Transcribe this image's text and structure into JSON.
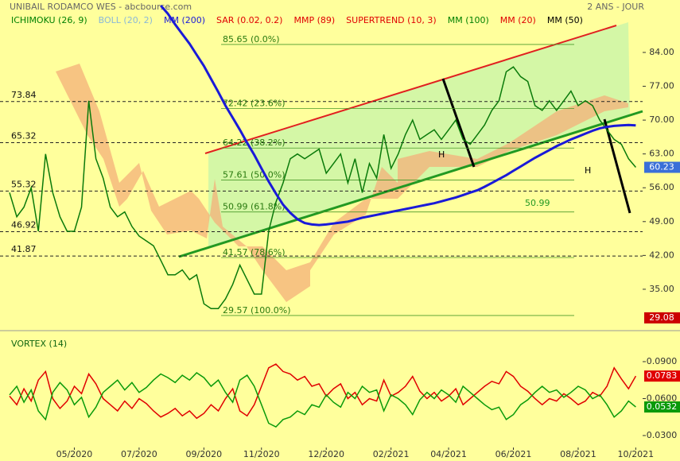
{
  "chart_data": [
    {
      "type": "line",
      "title": "UNIBAIL RODAMCO WES - abcbourse.com",
      "period": "2 ANS - JOUR",
      "indicators": [
        {
          "name": "ICHIMOKU (26, 9)",
          "color": "#008000"
        },
        {
          "name": "BOLL (20, 2)",
          "color": "#8ab8d8"
        },
        {
          "name": "MM (200)",
          "color": "#1a1ad8"
        },
        {
          "name": "SAR (0.02, 0.2)",
          "color": "#e00000"
        },
        {
          "name": "MMP (89)",
          "color": "#e00000"
        },
        {
          "name": "SUPERTREND (10, 3)",
          "color": "#e00000"
        },
        {
          "name": "MM (100)",
          "color": "#008000"
        },
        {
          "name": "MM (20)",
          "color": "#e00000"
        },
        {
          "name": "MM (50)",
          "color": "#000000"
        }
      ],
      "categories": [
        null,
        null,
        null,
        null,
        null,
        null,
        null,
        null,
        null,
        "05/2020",
        null,
        null,
        null,
        null,
        null,
        null,
        null,
        null,
        "07/2020",
        null,
        null,
        null,
        null,
        null,
        null,
        null,
        null,
        "09/2020",
        null,
        null,
        null,
        null,
        null,
        null,
        null,
        "11/2020",
        null,
        null,
        null,
        null,
        null,
        null,
        null,
        null,
        "12/2020",
        null,
        null,
        null,
        null,
        null,
        null,
        null,
        null,
        "02/2021",
        null,
        null,
        null,
        null,
        null,
        null,
        null,
        "04/2021",
        null,
        null,
        null,
        null,
        null,
        null,
        null,
        null,
        "06/2021",
        null,
        null,
        null,
        null,
        null,
        null,
        null,
        null,
        "08/2021",
        null,
        null,
        null,
        null,
        null,
        null,
        null,
        "10/2021"
      ],
      "close": {
        "color": "#0a7a0a",
        "values": [
          55,
          50,
          52,
          56,
          47,
          63,
          55,
          50,
          47,
          47,
          52,
          74,
          62,
          58,
          52,
          50,
          51,
          48,
          46,
          45,
          44,
          41,
          38,
          38,
          39,
          37,
          38,
          32,
          31,
          31,
          33,
          36,
          40,
          37,
          34,
          34,
          47,
          53,
          57,
          62,
          63,
          62,
          63,
          64,
          59,
          61,
          63,
          57,
          62,
          55,
          61,
          58,
          67,
          60,
          63,
          67,
          70,
          66,
          67,
          68,
          66,
          68,
          70,
          66,
          65,
          67,
          69,
          72,
          74,
          80,
          81,
          79,
          78,
          73,
          72,
          74,
          72,
          74,
          76,
          73,
          74,
          73,
          70,
          68,
          66,
          65,
          62,
          60.23
        ]
      },
      "ma200": {
        "color": "#1a1ad8",
        "values": [
          null,
          null,
          null,
          null,
          null,
          null,
          null,
          null,
          null,
          null,
          null,
          null,
          null,
          null,
          null,
          null,
          null,
          null,
          null,
          null,
          null,
          93.7,
          92,
          89.8,
          87.8,
          85.8,
          83.5,
          81.2,
          78.5,
          75.8,
          73,
          70.5,
          68,
          65.3,
          62.8,
          60,
          57.3,
          54.8,
          52.5,
          50.8,
          49.5,
          48.7,
          48.4,
          48.3,
          48.4,
          48.6,
          48.8,
          49,
          49.4,
          49.8,
          50.1,
          50.4,
          50.7,
          51,
          51.3,
          51.6,
          51.9,
          52.2,
          52.5,
          52.8,
          53.2,
          53.6,
          54,
          54.5,
          55,
          55.5,
          56.2,
          57,
          57.8,
          58.6,
          59.5,
          60.4,
          61.3,
          62.2,
          63,
          63.8,
          64.6,
          65.3,
          66,
          66.6,
          67.2,
          67.8,
          68.3,
          68.6,
          68.8,
          68.9,
          69,
          68.9
        ]
      },
      "ylim": [
        26.6,
        94.85
      ],
      "yticks": [
        {
          "value": 84,
          "label": "84.00"
        },
        {
          "value": 77,
          "label": "77.00"
        },
        {
          "value": 70,
          "label": "70.00"
        },
        {
          "value": 63,
          "label": "63.00"
        },
        {
          "value": 56,
          "label": "56.00"
        },
        {
          "value": 49,
          "label": "49.00"
        },
        {
          "value": 42,
          "label": "42.00"
        },
        {
          "value": 35,
          "label": "35.00"
        }
      ],
      "levels": [
        73.84,
        65.32,
        55.32,
        46.92,
        41.87
      ],
      "fib_levels": [
        {
          "value": 85.65,
          "label": "85.65  (0.0%)"
        },
        {
          "value": 72.42,
          "label": "72.42  (23.6%)"
        },
        {
          "value": 64.22,
          "label": "64.22  (38.2%)"
        },
        {
          "value": 57.61,
          "label": "57.61  (50.0%)"
        },
        {
          "value": 50.99,
          "label": "50.99  (61.8%)"
        },
        {
          "value": 41.57,
          "label": "41.57  (78.6%)"
        },
        {
          "value": 29.57,
          "label": "29.57  (100.0%)"
        }
      ],
      "price_tags": [
        {
          "value": 29.08,
          "color": "#cc0000"
        }
      ],
      "last_tag_color": "#3a6fd8",
      "annotations": [
        "H",
        "H",
        "50.99"
      ]
    },
    {
      "type": "line",
      "title": "VORTEX (14)",
      "series": [
        {
          "color": "#e00000",
          "values": [
            0.062,
            0.055,
            0.068,
            0.058,
            0.075,
            0.082,
            0.06,
            0.052,
            0.058,
            0.07,
            0.064,
            0.08,
            0.072,
            0.06,
            0.055,
            0.05,
            0.058,
            0.052,
            0.06,
            0.056,
            0.05,
            0.045,
            0.048,
            0.052,
            0.046,
            0.05,
            0.044,
            0.048,
            0.055,
            0.05,
            0.06,
            0.068,
            0.05,
            0.046,
            0.055,
            0.07,
            0.085,
            0.088,
            0.082,
            0.08,
            0.075,
            0.078,
            0.07,
            0.072,
            0.062,
            0.068,
            0.072,
            0.06,
            0.065,
            0.055,
            0.06,
            0.058,
            0.075,
            0.062,
            0.065,
            0.07,
            0.078,
            0.066,
            0.06,
            0.065,
            0.058,
            0.062,
            0.068,
            0.055,
            0.06,
            0.065,
            0.07,
            0.074,
            0.072,
            0.082,
            0.078,
            0.07,
            0.066,
            0.06,
            0.055,
            0.06,
            0.058,
            0.064,
            0.06,
            0.055,
            0.058,
            0.065,
            0.062,
            0.07,
            0.085,
            0.076,
            0.068,
            0.0783
          ]
        },
        {
          "color": "#0a9a0a",
          "values": [
            0.063,
            0.07,
            0.057,
            0.067,
            0.05,
            0.043,
            0.065,
            0.073,
            0.067,
            0.055,
            0.061,
            0.045,
            0.053,
            0.065,
            0.07,
            0.075,
            0.067,
            0.073,
            0.065,
            0.069,
            0.075,
            0.08,
            0.077,
            0.073,
            0.079,
            0.075,
            0.081,
            0.077,
            0.07,
            0.075,
            0.065,
            0.057,
            0.075,
            0.079,
            0.07,
            0.055,
            0.04,
            0.037,
            0.043,
            0.045,
            0.05,
            0.047,
            0.055,
            0.053,
            0.063,
            0.057,
            0.053,
            0.065,
            0.06,
            0.07,
            0.065,
            0.067,
            0.05,
            0.063,
            0.06,
            0.055,
            0.047,
            0.059,
            0.065,
            0.06,
            0.067,
            0.063,
            0.057,
            0.07,
            0.065,
            0.06,
            0.055,
            0.051,
            0.053,
            0.043,
            0.047,
            0.055,
            0.059,
            0.065,
            0.07,
            0.065,
            0.067,
            0.061,
            0.065,
            0.07,
            0.067,
            0.06,
            0.063,
            0.055,
            0.045,
            0.05,
            0.058,
            0.0532
          ]
        }
      ],
      "ylim": [
        0.019,
        0.1126
      ],
      "yticks": [
        {
          "value": 0.09,
          "label": "0.0900"
        },
        {
          "value": 0.06,
          "label": "0.0600"
        },
        {
          "value": 0.03,
          "label": "0.0300"
        }
      ]
    }
  ]
}
